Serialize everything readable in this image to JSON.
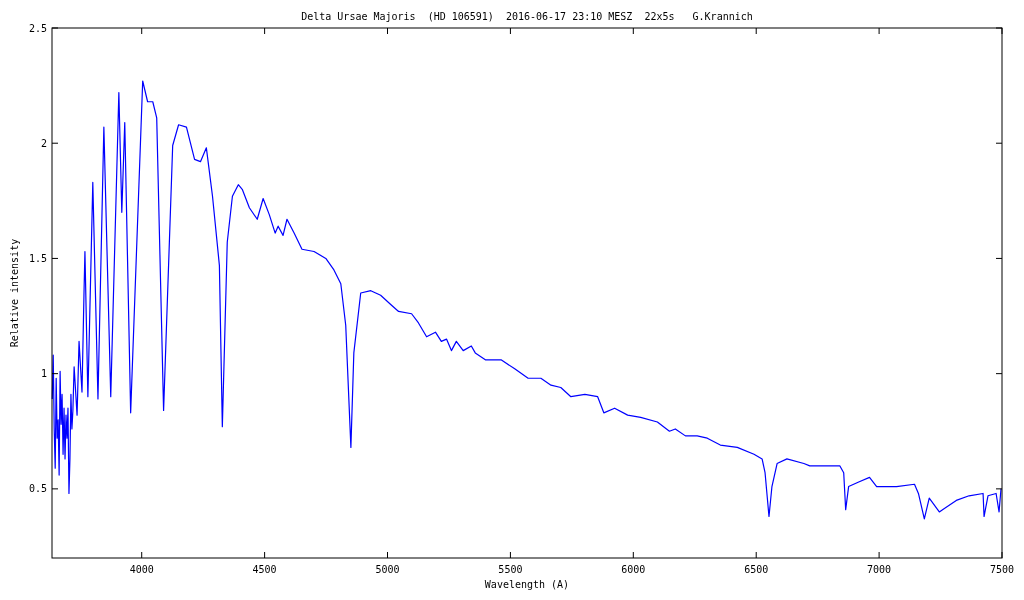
{
  "chart_data": {
    "type": "line",
    "title": "Delta Ursae Majoris  (HD 106591)  2016-06-17 23:10 MESZ  22x5s   G.Krannich",
    "xlabel": "Wavelength (A)",
    "ylabel": "Relative intensity",
    "x": [
      3636,
      3640,
      3644,
      3648,
      3652,
      3656,
      3660,
      3664,
      3668,
      3672,
      3676,
      3680,
      3684,
      3688,
      3692,
      3696,
      3700,
      3704,
      3708,
      3712,
      3716,
      3720,
      3725,
      3737,
      3745,
      3757,
      3765,
      3769,
      3781,
      3801,
      3822,
      3846,
      3874,
      3907,
      3919,
      3931,
      3955,
      4004,
      4024,
      4045,
      4061,
      4089,
      4126,
      4150,
      4182,
      4215,
      4239,
      4263,
      4288,
      4316,
      4328,
      4348,
      4369,
      4393,
      4409,
      4438,
      4470,
      4494,
      4519,
      4543,
      4555,
      4575,
      4591,
      4620,
      4652,
      4701,
      4749,
      4782,
      4810,
      4830,
      4851,
      4863,
      4891,
      4932,
      4972,
      5013,
      5045,
      5098,
      5126,
      5159,
      5195,
      5219,
      5240,
      5260,
      5280,
      5308,
      5341,
      5357,
      5398,
      5462,
      5519,
      5572,
      5624,
      5665,
      5705,
      5746,
      5803,
      5855,
      5880,
      5924,
      5977,
      6030,
      6098,
      6147,
      6171,
      6212,
      6260,
      6301,
      6354,
      6423,
      6491,
      6524,
      6536,
      6552,
      6564,
      6585,
      6625,
      6694,
      6718,
      6840,
      6856,
      6864,
      6876,
      6917,
      6961,
      6990,
      7071,
      7144,
      7160,
      7184,
      7204,
      7245,
      7314,
      7366,
      7423,
      7427,
      7443,
      7476,
      7488,
      7496
    ],
    "series": [
      {
        "color": "#0000ff",
        "values": [
          0.89,
          1.08,
          0.76,
          0.59,
          0.98,
          0.72,
          0.8,
          0.56,
          1.01,
          0.78,
          0.91,
          0.65,
          0.85,
          0.63,
          0.82,
          0.72,
          0.85,
          0.48,
          0.63,
          0.91,
          0.76,
          0.84,
          1.03,
          0.82,
          1.14,
          0.92,
          1.34,
          1.53,
          0.9,
          1.83,
          0.89,
          2.07,
          0.9,
          2.22,
          1.7,
          2.09,
          0.83,
          2.27,
          2.18,
          2.18,
          2.11,
          0.84,
          1.99,
          2.08,
          2.07,
          1.93,
          1.92,
          1.98,
          1.77,
          1.47,
          0.77,
          1.57,
          1.77,
          1.82,
          1.8,
          1.72,
          1.67,
          1.76,
          1.69,
          1.61,
          1.64,
          1.6,
          1.67,
          1.61,
          1.54,
          1.53,
          1.5,
          1.45,
          1.39,
          1.21,
          0.68,
          1.09,
          1.35,
          1.36,
          1.34,
          1.3,
          1.27,
          1.26,
          1.22,
          1.16,
          1.18,
          1.14,
          1.15,
          1.1,
          1.14,
          1.1,
          1.12,
          1.09,
          1.06,
          1.06,
          1.02,
          0.98,
          0.98,
          0.95,
          0.94,
          0.9,
          0.91,
          0.9,
          0.83,
          0.85,
          0.82,
          0.81,
          0.79,
          0.75,
          0.76,
          0.73,
          0.73,
          0.72,
          0.69,
          0.68,
          0.65,
          0.63,
          0.57,
          0.38,
          0.51,
          0.61,
          0.63,
          0.61,
          0.6,
          0.6,
          0.57,
          0.41,
          0.51,
          0.53,
          0.55,
          0.51,
          0.51,
          0.52,
          0.48,
          0.37,
          0.46,
          0.4,
          0.45,
          0.47,
          0.48,
          0.38,
          0.47,
          0.48,
          0.4,
          0.5
        ]
      }
    ],
    "xlim": [
      3635,
      7500
    ],
    "xticks": [
      4000,
      4500,
      5000,
      5500,
      6000,
      6500,
      7000,
      7500
    ],
    "ylim": [
      0.2,
      2.5
    ],
    "yticks": [
      0.5,
      1,
      1.5,
      2,
      2.5
    ],
    "grid": false,
    "line_style": "solid",
    "marker": "none"
  }
}
